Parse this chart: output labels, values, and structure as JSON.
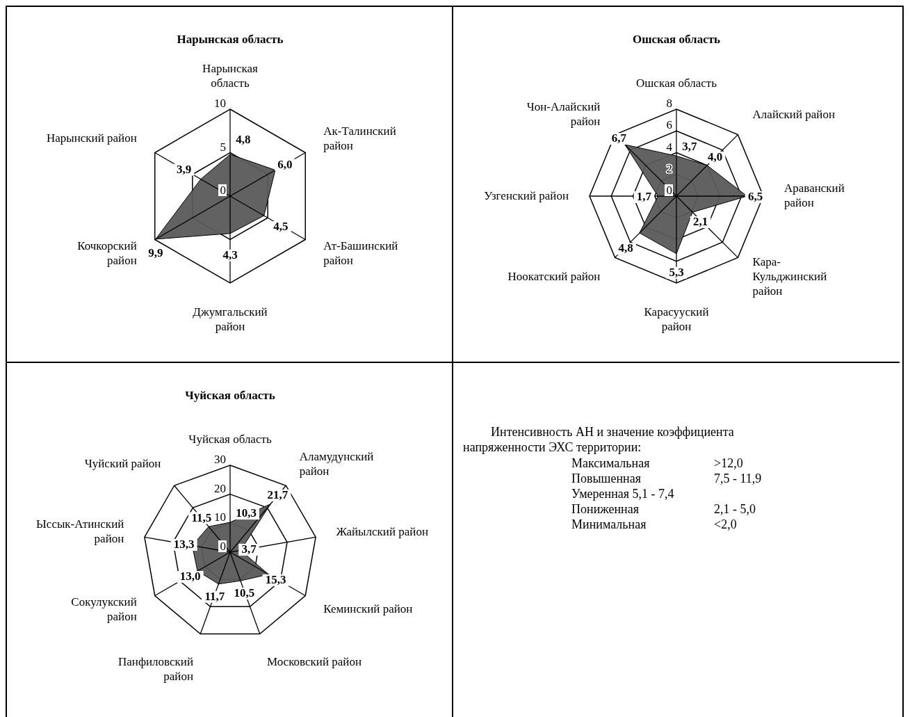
{
  "chart_data": [
    {
      "type": "radar",
      "title": "Нарынская область",
      "categories": [
        "Нарынская\nобласть",
        "Ак-Талинский\nрайон",
        "Ат-Башинский\nрайон",
        "Джумгальский\nрайон",
        "Кочкорский\nрайон",
        "Нарынский район"
      ],
      "series": [
        {
          "color": "#5a5a5a",
          "values": [
            4.8,
            6.0,
            4.5,
            4.3,
            9.9,
            3.9
          ],
          "value_labels": [
            "4,8",
            "6,0",
            "4,5",
            "4,3",
            "9,9",
            "3,9"
          ]
        }
      ],
      "ylim": [
        0,
        10
      ],
      "yticks": [
        0,
        5,
        10
      ],
      "grid": true
    },
    {
      "type": "radar",
      "title": "Ошская область",
      "categories": [
        "Ошская область",
        "Алайский район",
        "Араванский\nрайон",
        "Кара-\nКульджинский\nрайон",
        "Карасууский\nрайон",
        "Ноокатский район",
        "Узгенский район",
        "Чон-Алайский\nрайон"
      ],
      "series": [
        {
          "color": "#5a5a5a",
          "values": [
            3.7,
            4.0,
            6.5,
            2.1,
            5.3,
            4.8,
            1.7,
            6.7
          ],
          "value_labels": [
            "3,7",
            "4,0",
            "6,5",
            "2,1",
            "5,3",
            "4,8",
            "1,7",
            "6,7"
          ]
        }
      ],
      "ylim": [
        0,
        8
      ],
      "yticks": [
        0,
        2,
        4,
        6,
        8
      ],
      "grid": true
    },
    {
      "type": "radar",
      "title": "Чуйская область",
      "categories": [
        "Чуйская область",
        "Аламудунский\nрайон",
        "Жайылский район",
        "Кеминский район",
        "Московский район",
        "Панфиловский\nрайон",
        "Сокулукский\nрайон",
        "Ыссык-Атинский\nрайон",
        "Чуйский район"
      ],
      "series": [
        {
          "color": "#5a5a5a",
          "values": [
            10.3,
            21.7,
            3.7,
            15.3,
            10.5,
            11.7,
            13.0,
            13.3,
            11.5
          ],
          "value_labels": [
            "10,3",
            "21,7",
            "3,7",
            "15,3",
            "10,5",
            "11,7",
            "13,0",
            "13,3",
            "11,5"
          ]
        }
      ],
      "ylim": [
        0,
        30
      ],
      "yticks": [
        0,
        10,
        20,
        30
      ],
      "grid": true
    },
    {
      "type": "other",
      "annotations": [
        "Интенсивность АН и значение коэффициента напряженности ЭХС территории:",
        "Максимальная\t>12,0",
        "Повышенная\t7,5 - 11,9",
        "Умеренная 5,1 - 7,4",
        "Пониженная\t2,1 - 5,0",
        "Минимальная\t<2,0"
      ]
    }
  ]
}
